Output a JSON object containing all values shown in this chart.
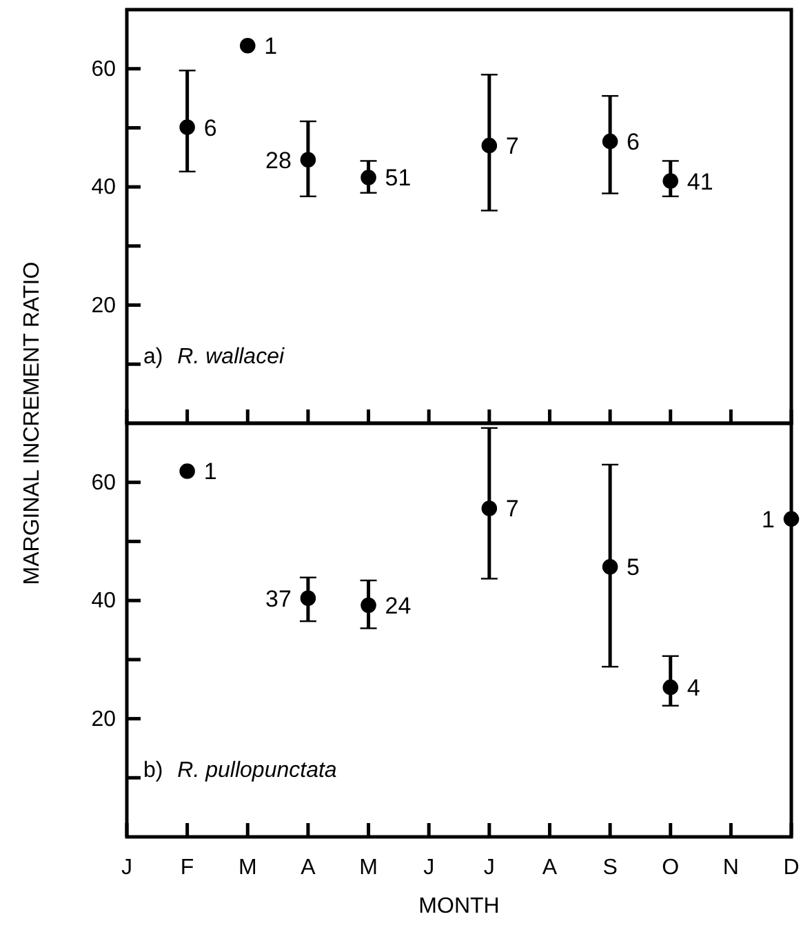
{
  "chart_data": [
    {
      "type": "scatter",
      "categories": [
        "J",
        "F",
        "M",
        "A",
        "M",
        "J",
        "J",
        "A",
        "S",
        "O",
        "N",
        "D"
      ],
      "ylabel": "MARGINAL INCREMENT RATIO",
      "ylim": [
        0,
        70
      ],
      "yticks": [
        {
          "value": 10,
          "label": null
        },
        20,
        {
          "value": 30,
          "label": null
        },
        40,
        {
          "value": 50,
          "label": null
        },
        60
      ],
      "tick_labels": "y",
      "marker": "circle",
      "annotations": [
        "a) R. wallacei",
        {
          "text": "6",
          "x": "F",
          "y": 50.1
        },
        {
          "text": "1",
          "x": "M",
          "y": 63.9
        },
        {
          "text": "28",
          "x": "A",
          "y": 44.6
        },
        "51",
        "7",
        {
          "text": "6",
          "x": "S",
          "y": 47.7
        },
        {
          "text": "41",
          "x": "O",
          "y": 41.0
        }
      ],
      "series": [
        {
          "color": "#000000",
          "values": [
            null,
            50.1,
            63.9,
            44.6,
            41.6,
            null,
            47.0,
            null,
            47.7,
            41.0,
            null,
            null
          ],
          "errors": [
            null,
            [
              42.6,
              59.7
            ],
            null,
            [
              38.4,
              51.1
            ],
            [
              39.0,
              44.4
            ],
            null,
            [
              36.0,
              59.0
            ],
            null,
            [
              38.9,
              55.4
            ],
            [
              38.4,
              44.4
            ],
            null,
            null
          ]
        }
      ]
    },
    {
      "type": "scatter",
      "categories": [
        "J",
        "F",
        "M",
        "A",
        "M",
        "J",
        "J",
        "A",
        "S",
        "O",
        "N",
        "D"
      ],
      "xlabel": "MONTH",
      "ylim": [
        0,
        70
      ],
      "yticks": [
        {
          "value": 10,
          "label": null
        },
        20,
        {
          "value": 30,
          "label": null
        },
        40,
        {
          "value": 50,
          "label": null
        },
        60
      ],
      "marker": "circle",
      "annotations": [
        "b) R. pullopunctata",
        {
          "text": "1",
          "x": "F",
          "y": 61.9
        },
        {
          "text": "37",
          "x": "A",
          "y": 40.4
        },
        "24",
        "7",
        {
          "text": "5",
          "x": "S",
          "y": 45.7
        },
        {
          "text": "4",
          "x": "O",
          "y": 25.3
        },
        {
          "text": "1",
          "x": "D",
          "y": 53.8
        }
      ],
      "series": [
        {
          "color": "#000000",
          "values": [
            null,
            61.9,
            null,
            40.4,
            39.2,
            null,
            55.6,
            null,
            45.7,
            25.3,
            null,
            53.8
          ],
          "errors": [
            null,
            null,
            null,
            [
              36.5,
              43.9
            ],
            [
              35.3,
              43.4
            ],
            null,
            [
              43.7,
              69.2
            ],
            null,
            [
              28.8,
              63.0
            ],
            [
              22.2,
              30.6
            ],
            null,
            null
          ]
        }
      ]
    }
  ]
}
